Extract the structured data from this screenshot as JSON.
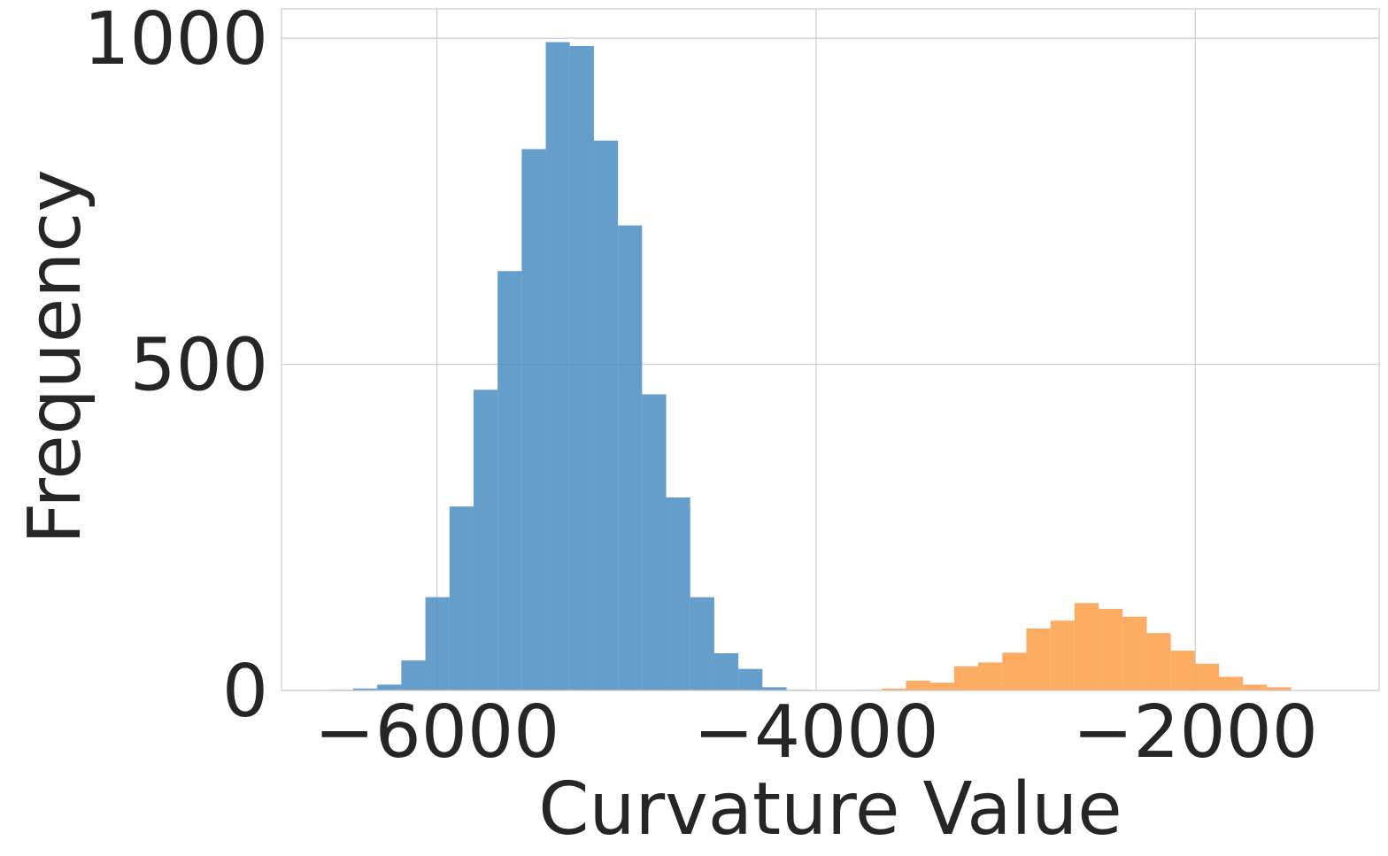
{
  "chart_data": {
    "type": "bar",
    "subtype": "histogram",
    "title": "",
    "xlabel": "Curvature Value",
    "ylabel": "Frequency",
    "xlim": [
      -6820,
      -4035
    ],
    "x_axis_right": -1030,
    "ylim": [
      0,
      1045
    ],
    "xticks": [
      -6000,
      -4000,
      -2000
    ],
    "xtick_labels": [
      "−6000",
      "−4000",
      "−2000"
    ],
    "yticks": [
      0,
      500,
      1000
    ],
    "ytick_labels": [
      "0",
      "500",
      "1000"
    ],
    "grid": true,
    "legend": "none",
    "bin_width": 127,
    "series": [
      {
        "color": "#4a8cc2",
        "bin_starts": [
          -6569,
          -6442,
          -6315,
          -6188,
          -6061,
          -5934,
          -5807,
          -5680,
          -5553,
          -5426,
          -5299,
          -5172,
          -5045,
          -4918,
          -4791,
          -4664,
          -4537,
          -4410,
          -4283,
          -4156
        ],
        "values": [
          1,
          3,
          9,
          46,
          143,
          282,
          461,
          643,
          830,
          994,
          988,
          843,
          713,
          454,
          296,
          143,
          57,
          33,
          5,
          1
        ]
      },
      {
        "color": "#fd9e48",
        "bin_starts": [
          -3780,
          -3653,
          -3526,
          -3399,
          -3272,
          -3145,
          -3018,
          -2891,
          -2764,
          -2637,
          -2510,
          -2383,
          -2256,
          -2129,
          -2002,
          -1875,
          -1748,
          -1621
        ],
        "values": [
          1,
          3,
          15,
          12,
          37,
          43,
          58,
          95,
          107,
          134,
          125,
          113,
          88,
          61,
          41,
          21,
          9,
          5
        ]
      }
    ]
  }
}
